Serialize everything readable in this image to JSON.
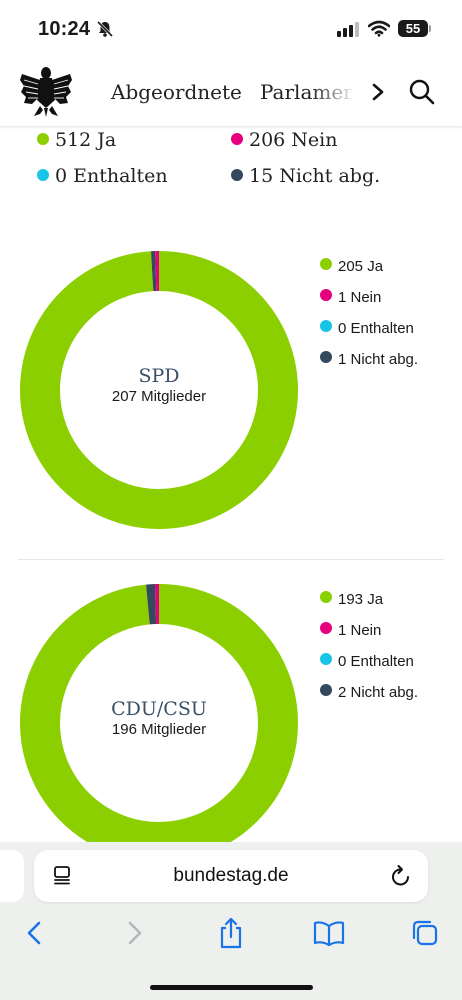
{
  "status": {
    "time": "10:24",
    "battery": "55"
  },
  "header": {
    "nav": [
      "Abgeordnete",
      "Parlament"
    ]
  },
  "totals": [
    {
      "label": "512 Ja",
      "color": "#8ccf00"
    },
    {
      "label": "206 Nein",
      "color": "#e6007e"
    },
    {
      "label": "0 Enthalten",
      "color": "#18c5e6"
    },
    {
      "label": "15 Nicht abg.",
      "color": "#34495e"
    }
  ],
  "parties": [
    {
      "name": "SPD",
      "members": "207 Mitglieder",
      "legend": [
        "205 Ja",
        "1 Nein",
        "0 Enthalten",
        "1 Nicht abg."
      ],
      "values": [
        205,
        1,
        0,
        1
      ]
    },
    {
      "name": "CDU/CSU",
      "members": "196 Mitglieder",
      "legend": [
        "193 Ja",
        "1 Nein",
        "0 Enthalten",
        "2 Nicht abg."
      ],
      "values": [
        193,
        1,
        0,
        2
      ]
    }
  ],
  "colors": {
    "ja": "#8ccf00",
    "nein": "#e6007e",
    "enthalten": "#18c5e6",
    "nicht_abg": "#34495e"
  },
  "browser": {
    "url": "bundestag.de"
  }
}
